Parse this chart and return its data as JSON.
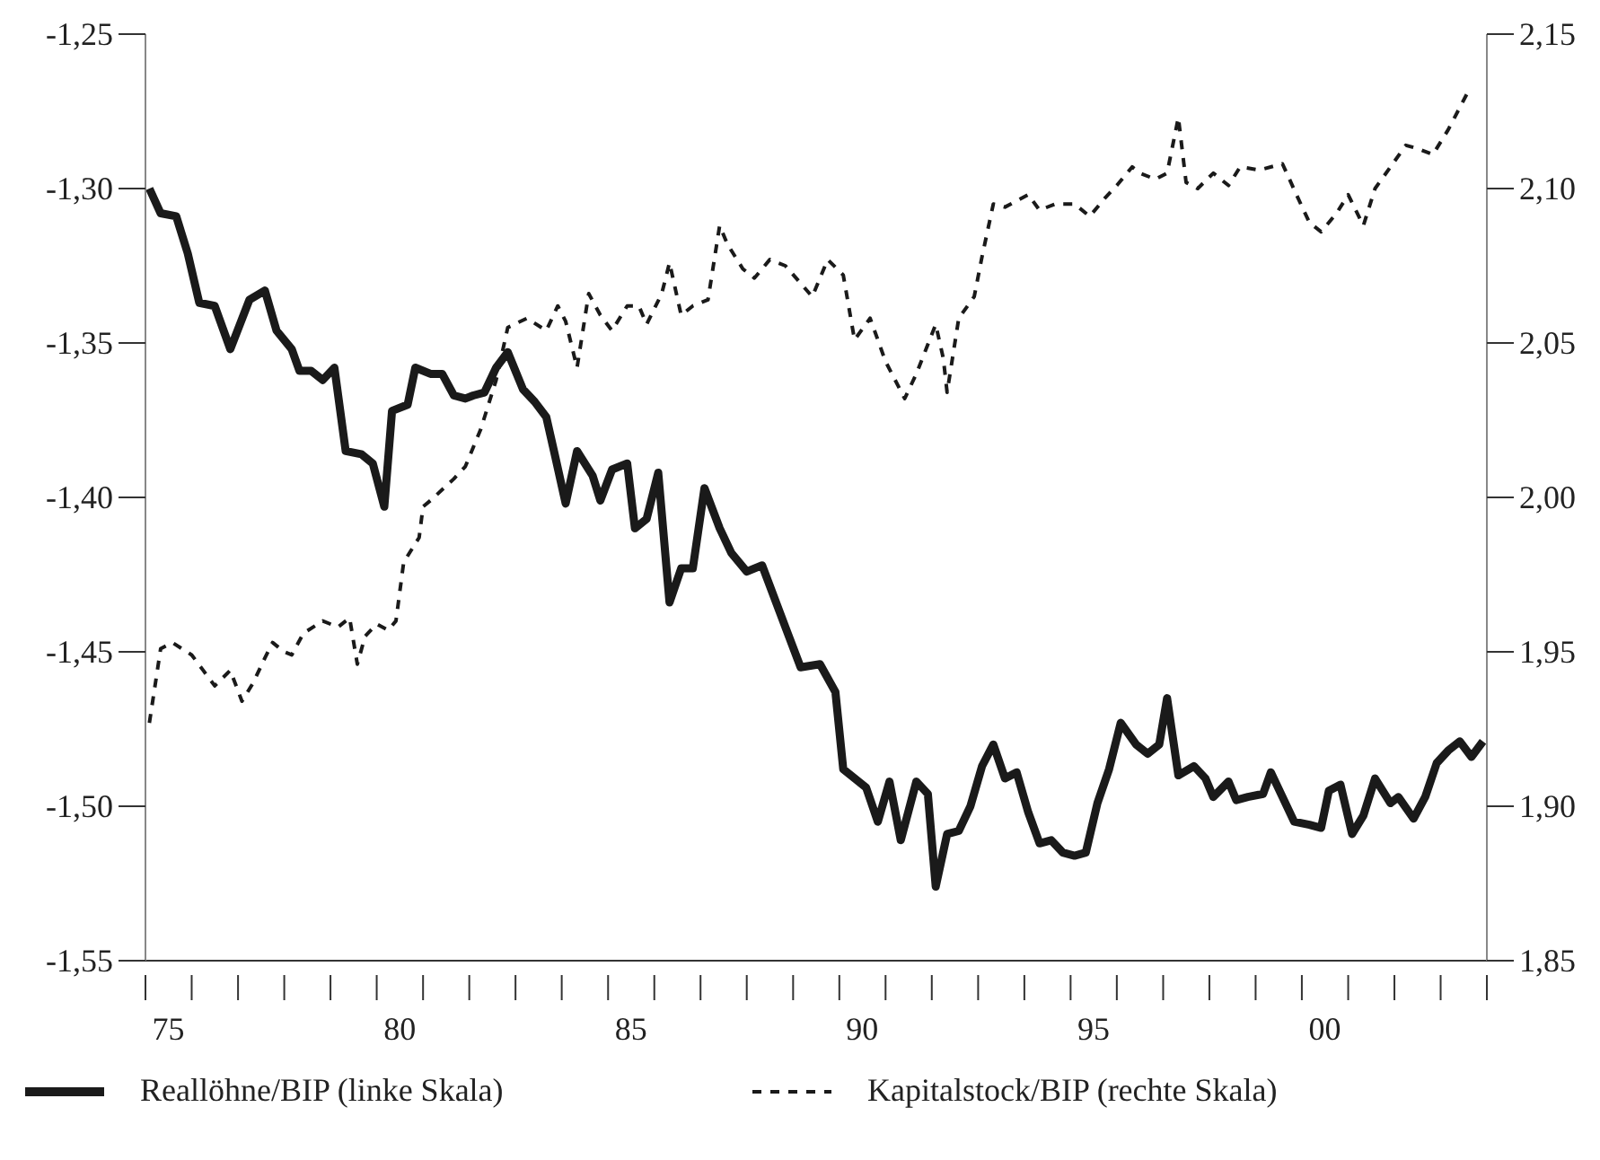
{
  "chart_data": {
    "type": "line",
    "legend": "bottom",
    "marker": "none",
    "xlim": [
      "1975-01",
      "2004-01"
    ],
    "xticks": [
      {
        "value": "1975-01",
        "label": null
      },
      {
        "value": "1975-07",
        "label": "75"
      },
      {
        "value": "1976-01",
        "label": null
      },
      {
        "value": "1977-01",
        "label": null
      },
      {
        "value": "1978-01",
        "label": null
      },
      {
        "value": "1979-01",
        "label": null
      },
      {
        "value": "1980-01",
        "label": null
      },
      {
        "value": "1980-07",
        "label": "80"
      },
      {
        "value": "1981-01",
        "label": null
      },
      {
        "value": "1982-01",
        "label": null
      },
      {
        "value": "1983-01",
        "label": null
      },
      {
        "value": "1984-01",
        "label": null
      },
      {
        "value": "1985-01",
        "label": null
      },
      {
        "value": "1985-07",
        "label": "85"
      },
      {
        "value": "1986-01",
        "label": null
      },
      {
        "value": "1987-01",
        "label": null
      },
      {
        "value": "1988-01",
        "label": null
      },
      {
        "value": "1989-01",
        "label": null
      },
      {
        "value": "1990-01",
        "label": null
      },
      {
        "value": "1990-07",
        "label": "90"
      },
      {
        "value": "1991-01",
        "label": null
      },
      {
        "value": "1992-01",
        "label": null
      },
      {
        "value": "1993-01",
        "label": null
      },
      {
        "value": "1994-01",
        "label": null
      },
      {
        "value": "1995-01",
        "label": null
      },
      {
        "value": "1995-07",
        "label": "95"
      },
      {
        "value": "1996-01",
        "label": null
      },
      {
        "value": "1997-01",
        "label": null
      },
      {
        "value": "1998-01",
        "label": null
      },
      {
        "value": "1999-01",
        "label": null
      },
      {
        "value": "2000-01",
        "label": null
      },
      {
        "value": "2000-07",
        "label": "00"
      },
      {
        "value": "2001-01",
        "label": null
      },
      {
        "value": "2002-01",
        "label": null
      },
      {
        "value": "2003-01",
        "label": null
      },
      {
        "value": "2004-01",
        "label": null
      }
    ],
    "ylim": [
      -1.55,
      -1.25
    ],
    "yticks": [
      {
        "value": -1.55,
        "label": "-1,55"
      },
      {
        "value": -1.5,
        "label": "-1,50"
      },
      {
        "value": -1.45,
        "label": "-1,45"
      },
      {
        "value": -1.4,
        "label": "-1,40"
      },
      {
        "value": -1.35,
        "label": "-1,35"
      },
      {
        "value": -1.3,
        "label": "-1,30"
      },
      {
        "value": -1.25,
        "label": "-1,25"
      }
    ],
    "y2lim": [
      1.85,
      2.15
    ],
    "y2ticks": [
      {
        "value": 1.85,
        "label": "1,85"
      },
      {
        "value": 1.9,
        "label": "1,90"
      },
      {
        "value": 1.95,
        "label": "1,95"
      },
      {
        "value": 2.0,
        "label": "2,00"
      },
      {
        "value": 2.05,
        "label": "2,05"
      },
      {
        "value": 2.1,
        "label": "2,10"
      },
      {
        "value": 2.15,
        "label": "2,15"
      }
    ],
    "series": [
      {
        "name": "Reallöhne/BIP (linke Skala)",
        "color": "#1a1a1a",
        "line_style": "solid",
        "x": [
          "1975-02",
          "1975-05",
          "1975-09",
          "1975-12",
          "1976-03",
          "1976-07",
          "1976-11",
          "1977-04",
          "1977-08",
          "1977-11",
          "1978-03",
          "1978-05",
          "1978-08",
          "1978-11",
          "1979-02",
          "1979-05",
          "1979-09",
          "1979-12",
          "1980-03",
          "1980-05",
          "1980-09",
          "1980-11",
          "1981-03",
          "1981-06",
          "1981-09",
          "1981-12",
          "1982-02",
          "1982-05",
          "1982-08",
          "1982-11",
          "1983-03",
          "1983-06",
          "1983-09",
          "1983-11",
          "1984-02",
          "1984-05",
          "1984-09",
          "1984-11",
          "1985-02",
          "1985-06",
          "1985-08",
          "1985-11",
          "1986-02",
          "1986-05",
          "1986-08",
          "1986-11",
          "1987-02",
          "1987-06",
          "1987-09",
          "1988-01",
          "1988-05",
          "1988-11",
          "1989-03",
          "1989-08",
          "1989-12",
          "1990-02",
          "1990-08",
          "1990-11",
          "1991-02",
          "1991-05",
          "1991-09",
          "1991-12",
          "1992-02",
          "1992-05",
          "1992-08",
          "1992-11",
          "1993-02",
          "1993-05",
          "1993-08",
          "1993-11",
          "1994-02",
          "1994-05",
          "1994-08",
          "1994-11",
          "1995-02",
          "1995-05",
          "1995-08",
          "1995-11",
          "1996-02",
          "1996-06",
          "1996-09",
          "1996-12",
          "1997-02",
          "1997-05",
          "1997-09",
          "1997-12",
          "1998-02",
          "1998-06",
          "1998-08",
          "1998-11",
          "1999-03",
          "1999-05",
          "1999-08",
          "1999-11",
          "2000-03",
          "2000-06",
          "2000-08",
          "2000-11",
          "2001-02",
          "2001-05",
          "2001-08",
          "2001-12",
          "2002-02",
          "2002-06",
          "2002-09",
          "2002-12",
          "2003-03",
          "2003-06",
          "2003-09",
          "2003-12"
        ],
        "values": [
          -1.3,
          -1.308,
          -1.309,
          -1.321,
          -1.337,
          -1.338,
          -1.352,
          -1.336,
          -1.333,
          -1.346,
          -1.352,
          -1.359,
          -1.359,
          -1.362,
          -1.358,
          -1.385,
          -1.386,
          -1.389,
          -1.403,
          -1.372,
          -1.37,
          -1.358,
          -1.36,
          -1.36,
          -1.367,
          -1.368,
          -1.367,
          -1.366,
          -1.358,
          -1.353,
          -1.365,
          -1.369,
          -1.374,
          -1.385,
          -1.402,
          -1.385,
          -1.393,
          -1.401,
          -1.391,
          -1.389,
          -1.41,
          -1.407,
          -1.392,
          -1.434,
          -1.423,
          -1.423,
          -1.397,
          -1.41,
          -1.418,
          -1.424,
          -1.422,
          -1.442,
          -1.455,
          -1.454,
          -1.463,
          -1.488,
          -1.494,
          -1.505,
          -1.492,
          -1.511,
          -1.492,
          -1.496,
          -1.526,
          -1.509,
          -1.508,
          -1.5,
          -1.487,
          -1.48,
          -1.491,
          -1.489,
          -1.502,
          -1.512,
          -1.511,
          -1.515,
          -1.516,
          -1.515,
          -1.499,
          -1.488,
          -1.473,
          -1.48,
          -1.483,
          -1.48,
          -1.465,
          -1.49,
          -1.487,
          -1.491,
          -1.497,
          -1.492,
          -1.498,
          -1.497,
          -1.496,
          -1.489,
          -1.497,
          -1.505,
          -1.506,
          -1.507,
          -1.495,
          -1.493,
          -1.509,
          -1.503,
          -1.491,
          -1.499,
          -1.497,
          -1.504,
          -1.497,
          -1.486,
          -1.482,
          -1.479,
          -1.484,
          -1.479
        ]
      },
      {
        "name": "Kapitalstock/BIP (rechte Skala)",
        "color": "#1a1a1a",
        "line_style": "dashed",
        "axis": "y2",
        "x": [
          "1975-02",
          "1975-05",
          "1975-08",
          "1976-01",
          "1976-04",
          "1976-07",
          "1976-11",
          "1977-02",
          "1977-05",
          "1977-08",
          "1977-10",
          "1978-01",
          "1978-03",
          "1978-06",
          "1978-11",
          "1979-03",
          "1979-06",
          "1979-08",
          "1979-10",
          "1980-01",
          "1980-04",
          "1980-06",
          "1980-08",
          "1980-12",
          "1981-01",
          "1981-03",
          "1981-09",
          "1981-12",
          "1982-04",
          "1982-08",
          "1982-11",
          "1983-04",
          "1983-09",
          "1983-12",
          "1984-02",
          "1984-05",
          "1984-08",
          "1984-11",
          "1985-02",
          "1985-06",
          "1985-09",
          "1985-11",
          "1986-03",
          "1986-05",
          "1986-08",
          "1986-11",
          "1987-03",
          "1987-06",
          "1987-08",
          "1987-12",
          "1988-03",
          "1988-07",
          "1988-11",
          "1989-06",
          "1989-10",
          "1990-02",
          "1990-05",
          "1990-09",
          "1991-01",
          "1991-06",
          "1991-09",
          "1992-02",
          "1992-04",
          "1992-05",
          "1992-08",
          "1992-12",
          "1993-02",
          "1993-05",
          "1993-08",
          "1994-02",
          "1994-05",
          "1994-09",
          "1995-02",
          "1995-06",
          "1995-10",
          "1996-01",
          "1996-05",
          "1996-07",
          "1996-11",
          "1997-02",
          "1997-05",
          "1997-07",
          "1997-10",
          "1998-02",
          "1998-06",
          "1998-09",
          "1999-02",
          "1999-08",
          "1999-12",
          "2000-03",
          "2000-06",
          "2000-10",
          "2001-01",
          "2001-05",
          "2001-08",
          "2001-12",
          "2002-04",
          "2002-07",
          "2002-11",
          "2003-03",
          "2003-08"
        ],
        "values": [
          1.927,
          1.951,
          1.953,
          1.949,
          1.944,
          1.939,
          1.944,
          1.934,
          1.94,
          1.948,
          1.953,
          1.95,
          1.949,
          1.956,
          1.96,
          1.958,
          1.961,
          1.946,
          1.955,
          1.959,
          1.957,
          1.96,
          1.979,
          1.987,
          1.997,
          1.999,
          2.006,
          2.01,
          2.022,
          2.038,
          2.055,
          2.058,
          2.054,
          2.062,
          2.057,
          2.042,
          2.066,
          2.059,
          2.054,
          2.062,
          2.062,
          2.056,
          2.066,
          2.076,
          2.059,
          2.062,
          2.064,
          2.088,
          2.082,
          2.074,
          2.071,
          2.077,
          2.075,
          2.065,
          2.077,
          2.072,
          2.051,
          2.058,
          2.044,
          2.032,
          2.04,
          2.056,
          2.045,
          2.034,
          2.058,
          2.065,
          2.078,
          2.095,
          2.094,
          2.098,
          2.093,
          2.095,
          2.095,
          2.091,
          2.097,
          2.101,
          2.107,
          2.105,
          2.103,
          2.105,
          2.123,
          2.102,
          2.1,
          2.105,
          2.101,
          2.107,
          2.106,
          2.108,
          2.097,
          2.089,
          2.086,
          2.092,
          2.098,
          2.088,
          2.1,
          2.107,
          2.114,
          2.113,
          2.111,
          2.119,
          2.131
        ]
      }
    ]
  }
}
